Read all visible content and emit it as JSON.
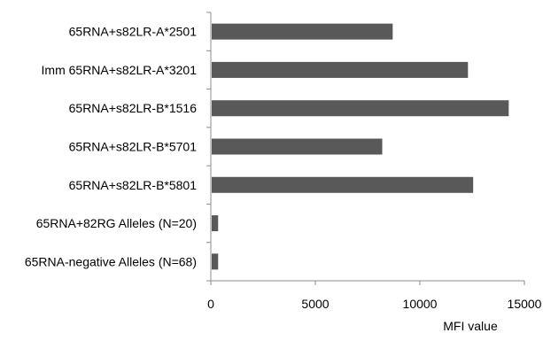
{
  "chart_data": {
    "type": "bar",
    "orientation": "horizontal",
    "categories": [
      "65RNA+s82LR-A*2501",
      "Imm 65RNA+s82LR-A*3201",
      "65RNA+s82LR-B*1516",
      "65RNA+s82LR-B*5701",
      "65RNA+s82LR-B*5801",
      "65RNA+82RG Alleles (N=20)",
      "65RNA-negative Alleles (N=68)"
    ],
    "values": [
      8700,
      12300,
      14250,
      8200,
      12550,
      350,
      350
    ],
    "xlabel": "MFI value",
    "ylabel": "",
    "title": "",
    "xlim": [
      0,
      15000
    ],
    "xticks": [
      0,
      5000,
      10000,
      15000
    ],
    "xtick_labels": [
      "0",
      "5000",
      "10000",
      "15000"
    ],
    "grid": false,
    "legend": "none",
    "bar_color": "#595959"
  }
}
